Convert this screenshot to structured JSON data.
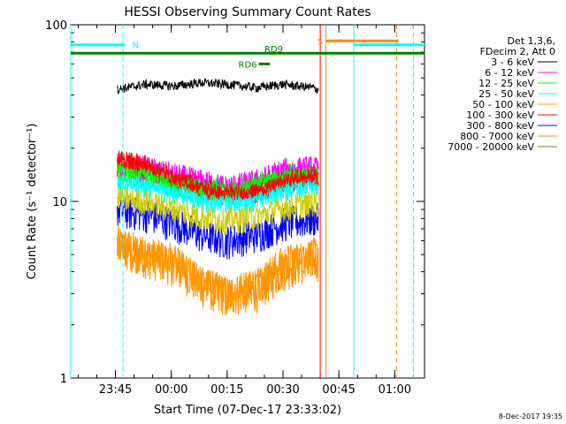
{
  "chart_data": {
    "type": "line",
    "title": "HESSI Observing Summary Count Rates",
    "xlabel": "Start Time (07-Dec-17 23:33:02)",
    "ylabel": "Count Rate (s⁻¹ detector⁻¹)",
    "yscale": "log",
    "ylim": [
      1,
      100
    ],
    "xlim_minutes": [
      0,
      95
    ],
    "x_ticks": [
      {
        "label": "23:45",
        "t": 12
      },
      {
        "label": "00:00",
        "t": 27
      },
      {
        "label": "00:15",
        "t": 42
      },
      {
        "label": "00:30",
        "t": 57
      },
      {
        "label": "00:45",
        "t": 72
      },
      {
        "label": "01:00",
        "t": 87
      }
    ],
    "y_ticks": [
      {
        "label": "1",
        "v": 1
      },
      {
        "label": "10",
        "v": 10
      },
      {
        "label": "100",
        "v": 100
      }
    ],
    "legend_header": [
      "Det 1,3,6,",
      "FDecim 2, Att 0"
    ],
    "series": [
      {
        "name": "3 - 6 keV",
        "color": "#000000",
        "points": [
          [
            12.5,
            43
          ],
          [
            20,
            46
          ],
          [
            28,
            45
          ],
          [
            35,
            47
          ],
          [
            42,
            46
          ],
          [
            50,
            44
          ],
          [
            57,
            46
          ],
          [
            65,
            44
          ],
          [
            66.5,
            43
          ]
        ]
      },
      {
        "name": "6 - 12 keV",
        "color": "#ff00ff",
        "points": [
          [
            12.5,
            16
          ],
          [
            20,
            15.5
          ],
          [
            28,
            14
          ],
          [
            35,
            13
          ],
          [
            42,
            12
          ],
          [
            50,
            13
          ],
          [
            57,
            15
          ],
          [
            65,
            15.5
          ],
          [
            66.5,
            15
          ]
        ]
      },
      {
        "name": "12 - 25 keV",
        "color": "#00ff00",
        "points": [
          [
            12.5,
            15
          ],
          [
            20,
            14.5
          ],
          [
            28,
            13
          ],
          [
            35,
            12
          ],
          [
            42,
            11.5
          ],
          [
            50,
            12.5
          ],
          [
            57,
            14
          ],
          [
            65,
            14.5
          ],
          [
            66.5,
            14
          ]
        ]
      },
      {
        "name": "25 - 50 keV",
        "color": "#00ffff",
        "points": [
          [
            12.5,
            13
          ],
          [
            20,
            12.5
          ],
          [
            28,
            11.5
          ],
          [
            35,
            10.5
          ],
          [
            42,
            10
          ],
          [
            50,
            10.5
          ],
          [
            57,
            12
          ],
          [
            65,
            12.5
          ],
          [
            66.5,
            12
          ]
        ]
      },
      {
        "name": "50 - 100 keV",
        "color": "#ff9900",
        "points": [
          [
            12.5,
            5.5
          ],
          [
            20,
            5
          ],
          [
            28,
            4.5
          ],
          [
            35,
            3.5
          ],
          [
            42,
            3
          ],
          [
            50,
            3.5
          ],
          [
            57,
            4.5
          ],
          [
            65,
            5
          ],
          [
            66.5,
            5
          ]
        ]
      },
      {
        "name": "100 - 300 keV",
        "color": "#ff0000",
        "points": [
          [
            12.5,
            17
          ],
          [
            20,
            16
          ],
          [
            28,
            13.5
          ],
          [
            35,
            12
          ],
          [
            42,
            11
          ],
          [
            50,
            11.5
          ],
          [
            57,
            13
          ],
          [
            65,
            14
          ],
          [
            66.5,
            14
          ]
        ]
      },
      {
        "name": "300 - 800 keV",
        "color": "#0000ff",
        "points": [
          [
            12.5,
            9
          ],
          [
            20,
            8.5
          ],
          [
            28,
            7.5
          ],
          [
            35,
            6.5
          ],
          [
            42,
            6
          ],
          [
            50,
            6.5
          ],
          [
            57,
            7.5
          ],
          [
            65,
            8
          ],
          [
            66.5,
            8
          ]
        ]
      },
      {
        "name": "800 - 7000 keV",
        "color": "#ff8c00",
        "points": [
          [
            12.5,
            5.8
          ],
          [
            20,
            5
          ],
          [
            28,
            4.5
          ],
          [
            35,
            3.4
          ],
          [
            42,
            3
          ],
          [
            50,
            3.2
          ],
          [
            57,
            4.2
          ],
          [
            65,
            4.8
          ],
          [
            66.5,
            4.8
          ]
        ]
      },
      {
        "name": "7000 - 20000 keV",
        "color": "#a07000",
        "points": []
      }
    ],
    "lime_band": {
      "color": "#cccc00",
      "points": [
        [
          12.5,
          10.5
        ],
        [
          20,
          10
        ],
        [
          28,
          9
        ],
        [
          35,
          8.2
        ],
        [
          42,
          7.8
        ],
        [
          50,
          8.2
        ],
        [
          57,
          9.2
        ],
        [
          65,
          9.8
        ],
        [
          66.5,
          9.8
        ]
      ]
    },
    "annotations": [
      {
        "label": "N",
        "color": "#00ffff",
        "y_value": 77
      },
      {
        "label": "S",
        "color": "#ff8c00",
        "y_value": 81
      },
      {
        "label": "RD9",
        "color": "#008000",
        "y_value": 69
      },
      {
        "label": "RD6",
        "color": "#008000",
        "y_value": 60
      }
    ],
    "vertical_markers": [
      {
        "t": 0,
        "color": "#00ffff",
        "style": "solid"
      },
      {
        "t": 14,
        "color": "#00ffff",
        "style": "dashed"
      },
      {
        "t": 67,
        "color": "#ff0000",
        "style": "solid"
      },
      {
        "t": 68.5,
        "color": "#ff8c00",
        "style": "solid"
      },
      {
        "t": 76,
        "color": "#00ffff",
        "style": "solid"
      },
      {
        "t": 87.5,
        "color": "#ff8c00",
        "style": "dashed"
      },
      {
        "t": 92,
        "color": "#00ffff",
        "style": "dashed"
      }
    ]
  },
  "footer": {
    "timestamp": "8-Dec-2017 19:35"
  }
}
